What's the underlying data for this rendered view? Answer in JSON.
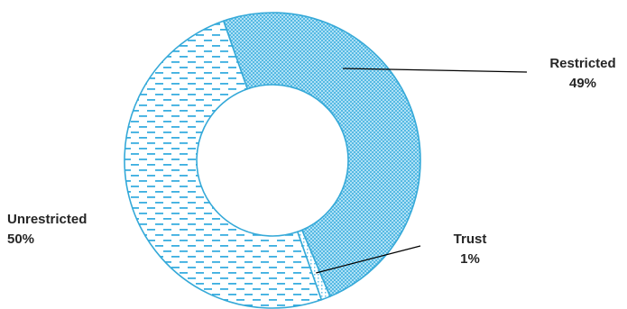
{
  "chart_data": {
    "type": "pie",
    "variant": "donut",
    "title": "",
    "slices": [
      {
        "name": "Restricted",
        "percent_label": "49%",
        "value": 49,
        "fill": "#8fd3ef",
        "pattern": "dense-dots"
      },
      {
        "name": "Trust",
        "percent_label": "1%",
        "value": 1,
        "fill": "#ffffff",
        "pattern": "light-dots"
      },
      {
        "name": "Unrestricted",
        "percent_label": "50%",
        "value": 50,
        "fill": "#ffffff",
        "pattern": "dashes"
      }
    ],
    "stroke_color": "#35a9d8",
    "legend": "none",
    "labels": "outside with leader lines"
  }
}
